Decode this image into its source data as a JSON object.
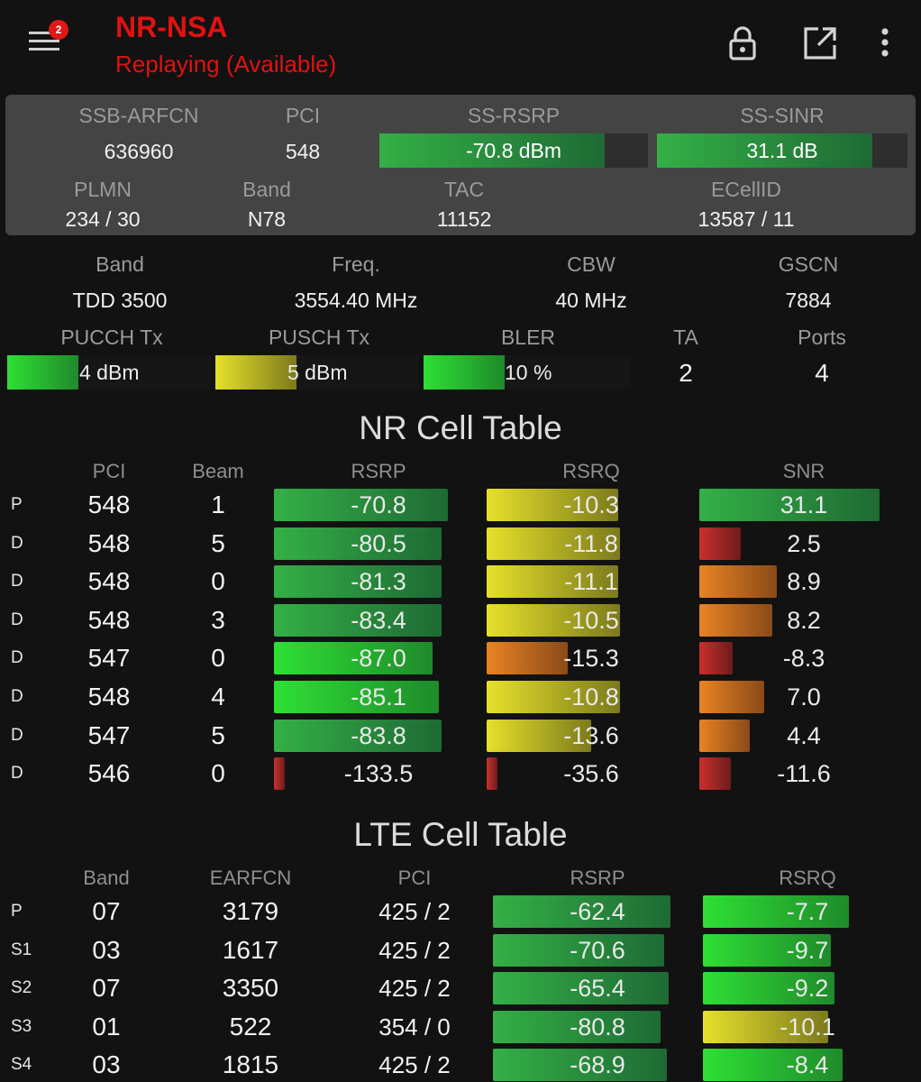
{
  "app": {
    "title": "NR-NSA",
    "status": "Replaying (Available)",
    "notification_count": "2"
  },
  "serving": {
    "labels": {
      "arfcn": "SSB-ARFCN",
      "pci": "PCI",
      "rsrp": "SS-RSRP",
      "sinr": "SS-SINR",
      "plmn": "PLMN",
      "band": "Band",
      "tac": "TAC",
      "ecellid": "ECellID"
    },
    "arfcn": "636960",
    "pci": "548",
    "rsrp_text": "-70.8 dBm",
    "rsrp_fraction": 0.84,
    "sinr_text": "31.1 dB",
    "sinr_fraction": 0.86,
    "plmn": "234 / 30",
    "band": "N78",
    "tac": "11152",
    "ecellid": "13587 / 11"
  },
  "radio": {
    "labels": {
      "band": "Band",
      "freq": "Freq.",
      "cbw": "CBW",
      "gscn": "GSCN",
      "pucch": "PUCCH Tx",
      "pusch": "PUSCH Tx",
      "bler": "BLER",
      "ta": "TA",
      "ports": "Ports"
    },
    "band": "TDD 3500",
    "freq": "3554.40 MHz",
    "cbw": "40 MHz",
    "gscn": "7884",
    "pucch_text": "4 dBm",
    "pucch_fraction": 0.35,
    "pucch_level": "lime",
    "pusch_text": "5 dBm",
    "pusch_fraction": 0.4,
    "pusch_level": "yellow",
    "bler_text": "10 %",
    "bler_fraction": 0.39,
    "bler_level": "lime",
    "ta": "2",
    "ports": "4"
  },
  "nr_table": {
    "title": "NR Cell Table",
    "headers": {
      "pci": "PCI",
      "beam": "Beam",
      "rsrp": "RSRP",
      "rsrq": "RSRQ",
      "snr": "SNR"
    },
    "rows": [
      {
        "type": "P",
        "pci": "548",
        "beam": "1",
        "rsrp": "-70.8",
        "rsrp_fraction": 0.83,
        "rsrp_level": "green",
        "rsrq": "-10.3",
        "rsrq_fraction": 0.63,
        "rsrq_level": "yellow",
        "snr": "31.1",
        "snr_fraction": 0.86,
        "snr_level": "green"
      },
      {
        "type": "D",
        "pci": "548",
        "beam": "5",
        "rsrp": "-80.5",
        "rsrp_fraction": 0.8,
        "rsrp_level": "green",
        "rsrq": "-11.8",
        "rsrq_fraction": 0.64,
        "rsrq_level": "yellow",
        "snr": "2.5",
        "snr_fraction": 0.2,
        "snr_level": "red"
      },
      {
        "type": "D",
        "pci": "548",
        "beam": "0",
        "rsrp": "-81.3",
        "rsrp_fraction": 0.8,
        "rsrp_level": "green",
        "rsrq": "-11.1",
        "rsrq_fraction": 0.63,
        "rsrq_level": "yellow",
        "snr": "8.9",
        "snr_fraction": 0.37,
        "snr_level": "orange"
      },
      {
        "type": "D",
        "pci": "548",
        "beam": "3",
        "rsrp": "-83.4",
        "rsrp_fraction": 0.8,
        "rsrp_level": "green",
        "rsrq": "-10.5",
        "rsrq_fraction": 0.64,
        "rsrq_level": "yellow",
        "snr": "8.2",
        "snr_fraction": 0.35,
        "snr_level": "orange"
      },
      {
        "type": "D",
        "pci": "547",
        "beam": "0",
        "rsrp": "-87.0",
        "rsrp_fraction": 0.76,
        "rsrp_level": "lime",
        "rsrq": "-15.3",
        "rsrq_fraction": 0.39,
        "rsrq_level": "orange",
        "snr": "-8.3",
        "snr_fraction": 0.16,
        "snr_level": "red"
      },
      {
        "type": "D",
        "pci": "548",
        "beam": "4",
        "rsrp": "-85.1",
        "rsrp_fraction": 0.79,
        "rsrp_level": "lime",
        "rsrq": "-10.8",
        "rsrq_fraction": 0.64,
        "rsrq_level": "yellow",
        "snr": "7.0",
        "snr_fraction": 0.31,
        "snr_level": "orange"
      },
      {
        "type": "D",
        "pci": "547",
        "beam": "5",
        "rsrp": "-83.8",
        "rsrp_fraction": 0.8,
        "rsrp_level": "green",
        "rsrq": "-13.6",
        "rsrq_fraction": 0.5,
        "rsrq_level": "yellow",
        "snr": "4.4",
        "snr_fraction": 0.24,
        "snr_level": "orange"
      },
      {
        "type": "D",
        "pci": "546",
        "beam": "0",
        "rsrp": "-133.5",
        "rsrp_fraction": 0.05,
        "rsrp_level": "red",
        "rsrq": "-35.6",
        "rsrq_fraction": 0.05,
        "rsrq_level": "red",
        "snr": "-11.6",
        "snr_fraction": 0.15,
        "snr_level": "red"
      }
    ]
  },
  "lte_table": {
    "title": "LTE Cell Table",
    "headers": {
      "band": "Band",
      "earfcn": "EARFCN",
      "pci": "PCI",
      "rsrp": "RSRP",
      "rsrq": "RSRQ"
    },
    "rows": [
      {
        "type": "P",
        "band": "07",
        "earfcn": "3179",
        "pci": "425 / 2",
        "rsrp": "-62.4",
        "rsrp_fraction": 0.85,
        "rsrp_level": "green",
        "rsrq": "-7.7",
        "rsrq_fraction": 0.7,
        "rsrq_level": "lime"
      },
      {
        "type": "S1",
        "band": "03",
        "earfcn": "1617",
        "pci": "425 / 2",
        "rsrp": "-70.6",
        "rsrp_fraction": 0.82,
        "rsrp_level": "green",
        "rsrq": "-9.7",
        "rsrq_fraction": 0.61,
        "rsrq_level": "lime"
      },
      {
        "type": "S2",
        "band": "07",
        "earfcn": "3350",
        "pci": "425 / 2",
        "rsrp": "-65.4",
        "rsrp_fraction": 0.84,
        "rsrp_level": "green",
        "rsrq": "-9.2",
        "rsrq_fraction": 0.63,
        "rsrq_level": "lime"
      },
      {
        "type": "S3",
        "band": "01",
        "earfcn": "522",
        "pci": "354 / 0",
        "rsrp": "-80.8",
        "rsrp_fraction": 0.8,
        "rsrp_level": "green",
        "rsrq": "-10.1",
        "rsrq_fraction": 0.6,
        "rsrq_level": "yellow"
      },
      {
        "type": "S4",
        "band": "03",
        "earfcn": "1815",
        "pci": "425 / 2",
        "rsrp": "-68.9",
        "rsrp_fraction": 0.83,
        "rsrp_level": "green",
        "rsrq": "-8.4",
        "rsrq_fraction": 0.67,
        "rsrq_level": "lime"
      }
    ]
  }
}
